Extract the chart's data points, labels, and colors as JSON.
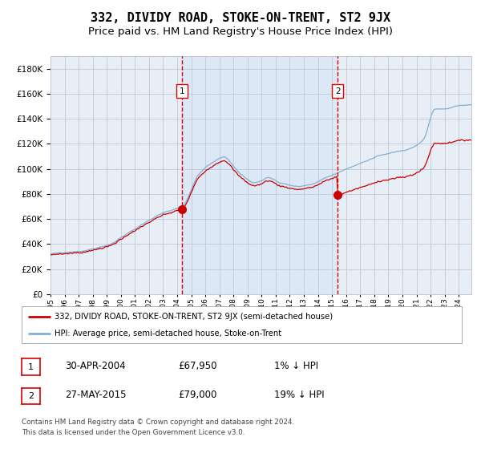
{
  "title": "332, DIVIDY ROAD, STOKE-ON-TRENT, ST2 9JX",
  "subtitle": "Price paid vs. HM Land Registry's House Price Index (HPI)",
  "legend_line1": "332, DIVIDY ROAD, STOKE-ON-TRENT, ST2 9JX (semi-detached house)",
  "legend_line2": "HPI: Average price, semi-detached house, Stoke-on-Trent",
  "annotation1_date": "30-APR-2004",
  "annotation1_price": "£67,950",
  "annotation1_hpi": "1% ↓ HPI",
  "annotation2_date": "27-MAY-2015",
  "annotation2_price": "£79,000",
  "annotation2_hpi": "19% ↓ HPI",
  "footer": "Contains HM Land Registry data © Crown copyright and database right 2024.\nThis data is licensed under the Open Government Licence v3.0.",
  "purchase1_year": 2004.33,
  "purchase1_price": 67950,
  "purchase2_year": 2015.41,
  "purchase2_price": 79000,
  "ylim": [
    0,
    190000
  ],
  "xlim_start": 1995.0,
  "xlim_end": 2024.9,
  "shaded_start": 2004.33,
  "shaded_end": 2015.41,
  "plot_bg_color": "#e8eef5",
  "red_line_color": "#cc0000",
  "blue_line_color": "#85aed4",
  "shaded_color": "#dce8f5",
  "vline_color": "#dd0000",
  "dot_color": "#cc0000",
  "grid_color": "#c0c8d8",
  "title_fontsize": 11,
  "subtitle_fontsize": 9.5
}
